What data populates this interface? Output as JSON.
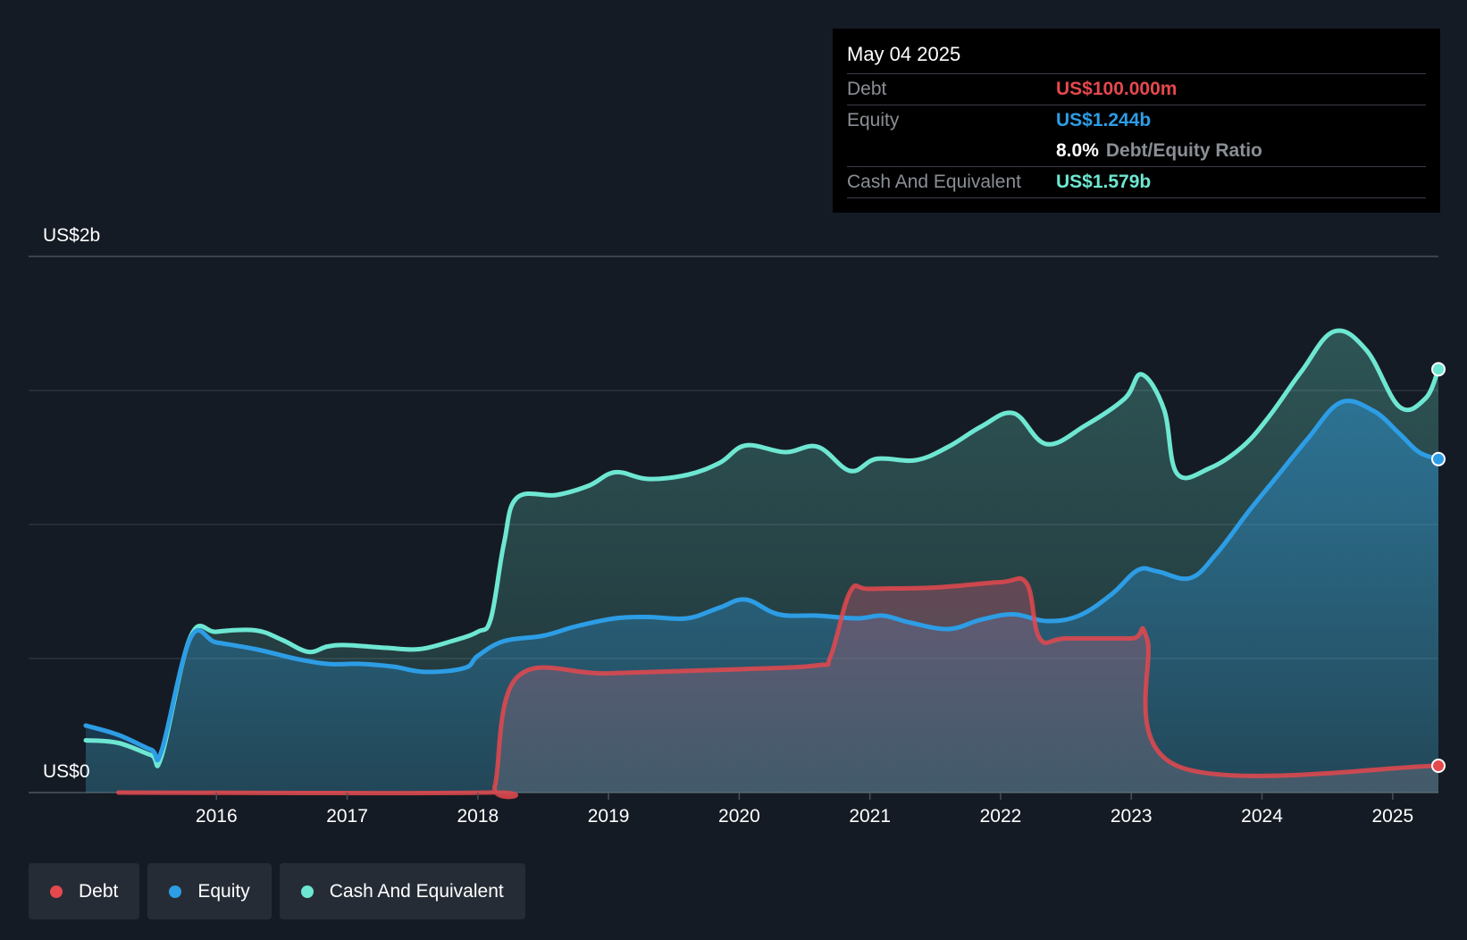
{
  "chart_data": {
    "type": "area",
    "y_axis": {
      "top_label": "US$2b",
      "bottom_label": "US$0",
      "ylim": [
        0,
        2000
      ],
      "grid": true,
      "unit": "US$m"
    },
    "x_axis": {
      "ticks": [
        "2016",
        "2017",
        "2018",
        "2019",
        "2020",
        "2021",
        "2022",
        "2023",
        "2024",
        "2025"
      ],
      "xlim": [
        2015.0,
        2025.35
      ]
    },
    "series": [
      {
        "name": "Cash And Equivalent",
        "color": "#6ee7d2",
        "points": [
          [
            2015.0,
            195
          ],
          [
            2015.25,
            185
          ],
          [
            2015.5,
            140
          ],
          [
            2015.58,
            135
          ],
          [
            2015.8,
            580
          ],
          [
            2016.0,
            600
          ],
          [
            2016.3,
            605
          ],
          [
            2016.5,
            570
          ],
          [
            2016.7,
            525
          ],
          [
            2016.85,
            545
          ],
          [
            2017.0,
            550
          ],
          [
            2017.3,
            540
          ],
          [
            2017.55,
            535
          ],
          [
            2017.8,
            565
          ],
          [
            2018.0,
            600
          ],
          [
            2018.1,
            650
          ],
          [
            2018.2,
            930
          ],
          [
            2018.3,
            1100
          ],
          [
            2018.6,
            1110
          ],
          [
            2018.85,
            1145
          ],
          [
            2019.05,
            1195
          ],
          [
            2019.3,
            1170
          ],
          [
            2019.6,
            1185
          ],
          [
            2019.85,
            1230
          ],
          [
            2020.05,
            1295
          ],
          [
            2020.35,
            1270
          ],
          [
            2020.6,
            1290
          ],
          [
            2020.85,
            1200
          ],
          [
            2021.05,
            1245
          ],
          [
            2021.35,
            1240
          ],
          [
            2021.6,
            1290
          ],
          [
            2021.85,
            1365
          ],
          [
            2022.1,
            1415
          ],
          [
            2022.35,
            1300
          ],
          [
            2022.65,
            1370
          ],
          [
            2022.95,
            1470
          ],
          [
            2023.08,
            1560
          ],
          [
            2023.25,
            1430
          ],
          [
            2023.35,
            1190
          ],
          [
            2023.6,
            1210
          ],
          [
            2023.85,
            1290
          ],
          [
            2024.05,
            1400
          ],
          [
            2024.3,
            1570
          ],
          [
            2024.55,
            1720
          ],
          [
            2024.8,
            1650
          ],
          [
            2025.05,
            1440
          ],
          [
            2025.25,
            1470
          ],
          [
            2025.35,
            1579
          ]
        ]
      },
      {
        "name": "Equity",
        "color": "#2d9de5",
        "points": [
          [
            2015.0,
            250
          ],
          [
            2015.25,
            215
          ],
          [
            2015.5,
            160
          ],
          [
            2015.58,
            155
          ],
          [
            2015.8,
            575
          ],
          [
            2016.0,
            560
          ],
          [
            2016.3,
            535
          ],
          [
            2016.6,
            500
          ],
          [
            2016.85,
            480
          ],
          [
            2017.1,
            480
          ],
          [
            2017.35,
            470
          ],
          [
            2017.6,
            450
          ],
          [
            2017.9,
            465
          ],
          [
            2018.0,
            510
          ],
          [
            2018.2,
            565
          ],
          [
            2018.5,
            585
          ],
          [
            2018.75,
            620
          ],
          [
            2019.05,
            650
          ],
          [
            2019.3,
            655
          ],
          [
            2019.6,
            650
          ],
          [
            2019.85,
            690
          ],
          [
            2020.05,
            720
          ],
          [
            2020.3,
            665
          ],
          [
            2020.6,
            660
          ],
          [
            2020.9,
            650
          ],
          [
            2021.1,
            660
          ],
          [
            2021.3,
            635
          ],
          [
            2021.6,
            610
          ],
          [
            2021.85,
            645
          ],
          [
            2022.1,
            665
          ],
          [
            2022.35,
            640
          ],
          [
            2022.6,
            660
          ],
          [
            2022.85,
            740
          ],
          [
            2023.05,
            830
          ],
          [
            2023.2,
            825
          ],
          [
            2023.45,
            800
          ],
          [
            2023.65,
            890
          ],
          [
            2023.9,
            1050
          ],
          [
            2024.1,
            1170
          ],
          [
            2024.35,
            1320
          ],
          [
            2024.6,
            1455
          ],
          [
            2024.85,
            1425
          ],
          [
            2025.05,
            1340
          ],
          [
            2025.2,
            1270
          ],
          [
            2025.35,
            1244
          ]
        ]
      },
      {
        "name": "Debt",
        "color": "#e5484d",
        "points": [
          [
            2015.25,
            0
          ],
          [
            2018.05,
            0
          ],
          [
            2018.13,
            25
          ],
          [
            2018.3,
            430
          ],
          [
            2019.0,
            445
          ],
          [
            2020.0,
            460
          ],
          [
            2020.6,
            475
          ],
          [
            2020.7,
            510
          ],
          [
            2020.85,
            750
          ],
          [
            2021.0,
            760
          ],
          [
            2021.5,
            765
          ],
          [
            2022.0,
            785
          ],
          [
            2022.2,
            780
          ],
          [
            2022.3,
            575
          ],
          [
            2022.5,
            575
          ],
          [
            2023.0,
            575
          ],
          [
            2023.12,
            575
          ],
          [
            2023.35,
            100
          ],
          [
            2025.35,
            100
          ]
        ]
      }
    ]
  },
  "tooltip": {
    "date": "May 04 2025",
    "debt_label": "Debt",
    "debt_value": "US$100.000m",
    "equity_label": "Equity",
    "equity_value": "US$1.244b",
    "ratio_value": "8.0%",
    "ratio_label": "Debt/Equity Ratio",
    "cash_label": "Cash And Equivalent",
    "cash_value": "US$1.579b"
  },
  "legend": [
    {
      "label": "Debt",
      "color": "#e5484d"
    },
    {
      "label": "Equity",
      "color": "#2d9de5"
    },
    {
      "label": "Cash And Equivalent",
      "color": "#6ee7d2"
    }
  ],
  "colors": {
    "background": "#151b24",
    "debt": "#e5484d",
    "equity": "#2d9de5",
    "cash": "#6ee7d2"
  }
}
